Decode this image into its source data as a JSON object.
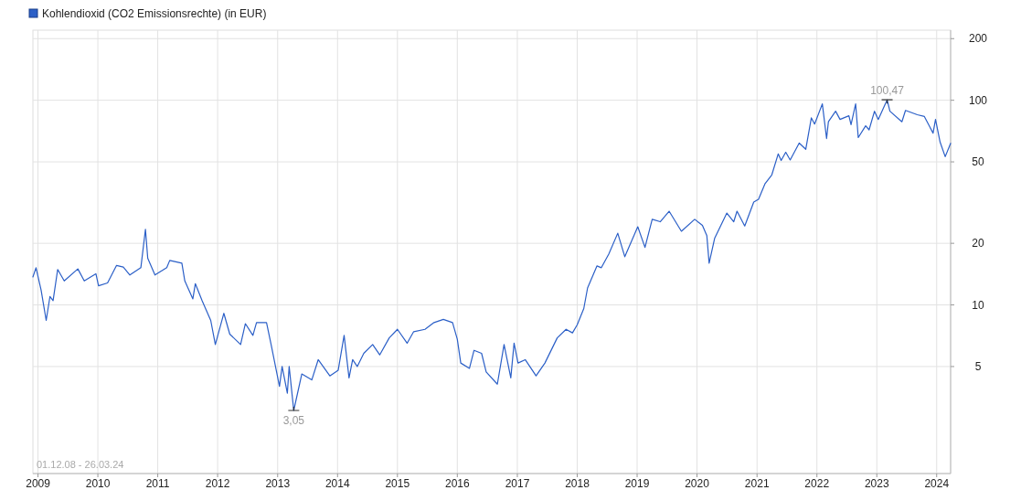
{
  "chart_data": {
    "type": "line",
    "log": "y",
    "grid": true,
    "legend": "top left",
    "line_style": "solid",
    "xlim": [
      "2008-12-01",
      "2024-03-26"
    ],
    "ylim": [
      1.5,
      220
    ],
    "xticks": [
      {
        "value": "2009",
        "label": "2009"
      },
      {
        "value": "2010",
        "label": "2010"
      },
      {
        "value": "2011",
        "label": "2011"
      },
      {
        "value": "2012",
        "label": "2012"
      },
      {
        "value": "2013",
        "label": "2013"
      },
      {
        "value": "2014",
        "label": "2014"
      },
      {
        "value": "2015",
        "label": "2015"
      },
      {
        "value": "2016",
        "label": "2016"
      },
      {
        "value": "2017",
        "label": "2017"
      },
      {
        "value": "2018",
        "label": "2018"
      },
      {
        "value": "2019",
        "label": "2019"
      },
      {
        "value": "2020",
        "label": "2020"
      },
      {
        "value": "2021",
        "label": "2021"
      },
      {
        "value": "2022",
        "label": "2022"
      },
      {
        "value": "2023",
        "label": "2023"
      },
      {
        "value": "2024",
        "label": "2024"
      }
    ],
    "yticks": [
      5,
      10,
      20,
      50,
      100,
      200
    ],
    "annotations": [
      {
        "text": "100,47",
        "x": "2023-03-05",
        "y": 100.47
      },
      {
        "text": "3,05",
        "x": "2013-04-09",
        "y": 3.05
      },
      "01.12.08 - 26.03.24"
    ],
    "series": [
      {
        "name": "Kohlendioxid (CO2 Emissionsrechte) (in EUR)",
        "color": "#2b5fc7",
        "x": [
          "2008-12-01",
          "2008-12-20",
          "2009-01-20",
          "2009-02-20",
          "2009-03-15",
          "2009-04-03",
          "2009-05-01",
          "2009-06-10",
          "2009-09-01",
          "2009-10-10",
          "2009-12-20",
          "2010-01-05",
          "2010-03-01",
          "2010-04-25",
          "2010-06-05",
          "2010-07-15",
          "2010-09-20",
          "2010-10-18",
          "2010-11-01",
          "2010-12-15",
          "2011-02-25",
          "2011-03-15",
          "2011-05-28",
          "2011-06-15",
          "2011-08-03",
          "2011-08-18",
          "2011-09-28",
          "2011-11-20",
          "2011-12-18",
          "2012-02-08",
          "2012-03-15",
          "2012-05-20",
          "2012-06-18",
          "2012-08-03",
          "2012-08-25",
          "2012-10-25",
          "2012-11-22",
          "2013-01-12",
          "2013-01-28",
          "2013-03-01",
          "2013-03-12",
          "2013-04-09",
          "2013-05-28",
          "2013-07-28",
          "2013-09-05",
          "2013-11-15",
          "2014-01-05",
          "2014-02-10",
          "2014-03-12",
          "2014-04-03",
          "2014-05-01",
          "2014-06-10",
          "2014-08-03",
          "2014-09-15",
          "2014-11-12",
          "2015-01-01",
          "2015-03-01",
          "2015-04-10",
          "2015-06-18",
          "2015-08-12",
          "2015-10-08",
          "2015-12-03",
          "2016-01-01",
          "2016-01-22",
          "2016-03-15",
          "2016-04-12",
          "2016-05-28",
          "2016-06-25",
          "2016-09-01",
          "2016-10-12",
          "2016-11-22",
          "2016-12-12",
          "2017-01-05",
          "2017-02-18",
          "2017-04-25",
          "2017-06-18",
          "2017-09-01",
          "2017-10-25",
          "2017-12-03",
          "2018-01-01",
          "2018-02-10",
          "2018-03-05",
          "2018-05-01",
          "2018-05-28",
          "2018-07-12",
          "2018-09-05",
          "2018-10-18",
          "2019-01-05",
          "2019-02-18",
          "2019-04-03",
          "2019-05-22",
          "2019-07-15",
          "2019-09-28",
          "2019-12-18",
          "2020-02-03",
          "2020-03-01",
          "2020-03-15",
          "2020-04-18",
          "2020-07-01",
          "2020-08-12",
          "2020-09-01",
          "2020-10-18",
          "2020-12-12",
          "2021-01-10",
          "2021-02-18",
          "2021-04-01",
          "2021-05-10",
          "2021-05-28",
          "2021-06-25",
          "2021-07-22",
          "2021-09-15",
          "2021-10-25",
          "2021-11-28",
          "2021-12-18",
          "2022-02-03",
          "2022-03-01",
          "2022-03-12",
          "2022-04-25",
          "2022-05-22",
          "2022-07-15",
          "2022-07-28",
          "2022-08-25",
          "2022-09-10",
          "2022-10-25",
          "2022-11-15",
          "2022-12-18",
          "2023-01-10",
          "2023-03-05",
          "2023-03-22",
          "2023-06-03",
          "2023-06-25",
          "2023-09-05",
          "2023-10-18",
          "2023-12-10",
          "2023-12-25",
          "2024-01-22",
          "2024-02-22",
          "2024-03-26"
        ],
        "values": [
          13.7,
          15.2,
          11.8,
          8.4,
          11.0,
          10.5,
          14.9,
          13.1,
          15.0,
          13.1,
          14.2,
          12.4,
          12.8,
          15.6,
          15.3,
          14.0,
          15.2,
          23.4,
          16.9,
          14.0,
          15.2,
          16.5,
          16.0,
          13.1,
          10.7,
          12.7,
          10.5,
          8.4,
          6.4,
          9.1,
          7.2,
          6.4,
          8.1,
          7.1,
          8.2,
          8.2,
          6.4,
          4.0,
          5.0,
          3.7,
          5.0,
          3.05,
          4.6,
          4.3,
          5.4,
          4.5,
          4.8,
          7.1,
          4.4,
          5.4,
          5.0,
          5.8,
          6.4,
          5.7,
          6.9,
          7.6,
          6.5,
          7.4,
          7.6,
          8.2,
          8.5,
          8.2,
          6.8,
          5.2,
          4.9,
          6.0,
          5.8,
          4.7,
          4.1,
          6.4,
          4.4,
          6.5,
          5.2,
          5.4,
          4.5,
          5.2,
          6.9,
          7.6,
          7.3,
          8.0,
          9.6,
          12.1,
          15.5,
          15.2,
          17.7,
          22.4,
          17.2,
          24.1,
          19.1,
          26.2,
          25.5,
          28.7,
          22.9,
          26.2,
          24.5,
          21.8,
          16.0,
          21.2,
          28.1,
          25.5,
          28.7,
          24.3,
          31.8,
          32.8,
          39.0,
          43.2,
          54.7,
          50.8,
          55.7,
          51.1,
          61.8,
          57.6,
          82,
          76.5,
          96,
          65.0,
          78.5,
          88.4,
          80.6,
          84.0,
          76.0,
          96,
          65.7,
          75.0,
          71.7,
          88.4,
          80.6,
          100.47,
          88.4,
          78.5,
          89.2,
          85.0,
          83.3,
          69.1,
          80.6,
          62.4,
          53.0,
          61.6
        ]
      }
    ]
  }
}
